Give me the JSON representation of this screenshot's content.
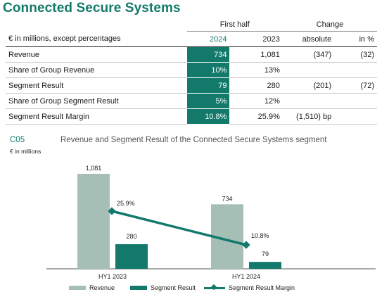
{
  "title": "Connected Secure Systems",
  "table": {
    "group_headers": {
      "first_half": "First half",
      "change": "Change"
    },
    "columns": {
      "label": "€ in millions, except percentages",
      "y2024": "2024",
      "y2023": "2023",
      "absolute": "absolute",
      "pct": "in %"
    },
    "rows": [
      {
        "label": "Revenue",
        "y2024": "734",
        "y2023": "1,081",
        "absolute": "(347)",
        "pct": "(32)"
      },
      {
        "label": "Share of Group Revenue",
        "y2024": "10%",
        "y2023": "13%",
        "absolute": "",
        "pct": ""
      },
      {
        "label": "Segment Result",
        "y2024": "79",
        "y2023": "280",
        "absolute": "(201)",
        "pct": "(72)"
      },
      {
        "label": "Share of Group Segment Result",
        "y2024": "5%",
        "y2023": "12%",
        "absolute": "",
        "pct": ""
      },
      {
        "label": "Segment Result Margin",
        "y2024": "10.8%",
        "y2023": "25.9%",
        "absolute": "(1,510) bp",
        "pct": ""
      }
    ]
  },
  "chart": {
    "code": "C05",
    "title": "Revenue and Segment Result of the Connected Secure Systems segment",
    "unit": "€ in millions"
  },
  "chart_data": {
    "type": "bar",
    "categories": [
      "HY1 2023",
      "HY1 2024"
    ],
    "series": [
      {
        "name": "Revenue",
        "values": [
          1081,
          734
        ],
        "labels": [
          "1,081",
          "734"
        ],
        "color": "#a6bfb6"
      },
      {
        "name": "Segment Result",
        "values": [
          280,
          79
        ],
        "labels": [
          "280",
          "79"
        ],
        "color": "#137a6b"
      },
      {
        "name": "Segment Result Margin",
        "type": "line",
        "values": [
          25.9,
          10.8
        ],
        "labels": [
          "25.9%",
          "10.8%"
        ],
        "color": "#137a6b"
      }
    ],
    "ylabel": "€ in millions",
    "legend_position": "bottom",
    "grid": false
  },
  "colors": {
    "accent": "#137a6b",
    "revenue": "#a6bfb6",
    "header_text": "#137a6b"
  }
}
